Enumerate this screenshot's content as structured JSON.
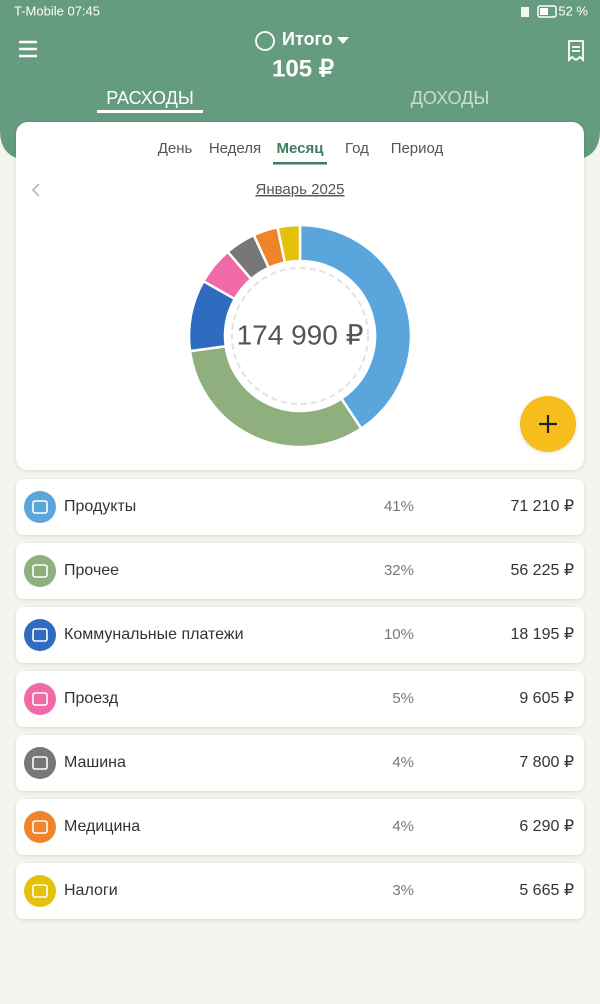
{
  "status_bar": {
    "carrier_time": "T-Mobile 07:45",
    "battery": "52 %"
  },
  "header": {
    "title": "Итого",
    "total": "105 ₽",
    "tabs": [
      "РАСХОДЫ",
      "ДОХОДЫ"
    ]
  },
  "periods": [
    "День",
    "Неделя",
    "Месяц",
    "Год",
    "Период"
  ],
  "month": "Январь 2025",
  "chart_data": {
    "type": "pie",
    "center_label": "174 990 ₽",
    "categories": [
      "Продукты",
      "Прочее",
      "Коммунальные платежи",
      "Проезд",
      "Машина",
      "Медицина",
      "Налоги"
    ],
    "values": [
      71210,
      56225,
      18195,
      9605,
      7800,
      6290,
      5665
    ],
    "value_labels": [
      "71 210 ₽",
      "56 225 ₽",
      "18 195 ₽",
      "9 605 ₽",
      "7 800 ₽",
      "6 290 ₽",
      "5 665 ₽"
    ],
    "percent_labels": [
      "41%",
      "32%",
      "10%",
      "5%",
      "4%",
      "4%",
      "3%"
    ],
    "colors": [
      "#5aa6dc",
      "#8fb07e",
      "#2f6cc0",
      "#f06aa8",
      "#777777",
      "#f0842a",
      "#e4c20c"
    ]
  }
}
